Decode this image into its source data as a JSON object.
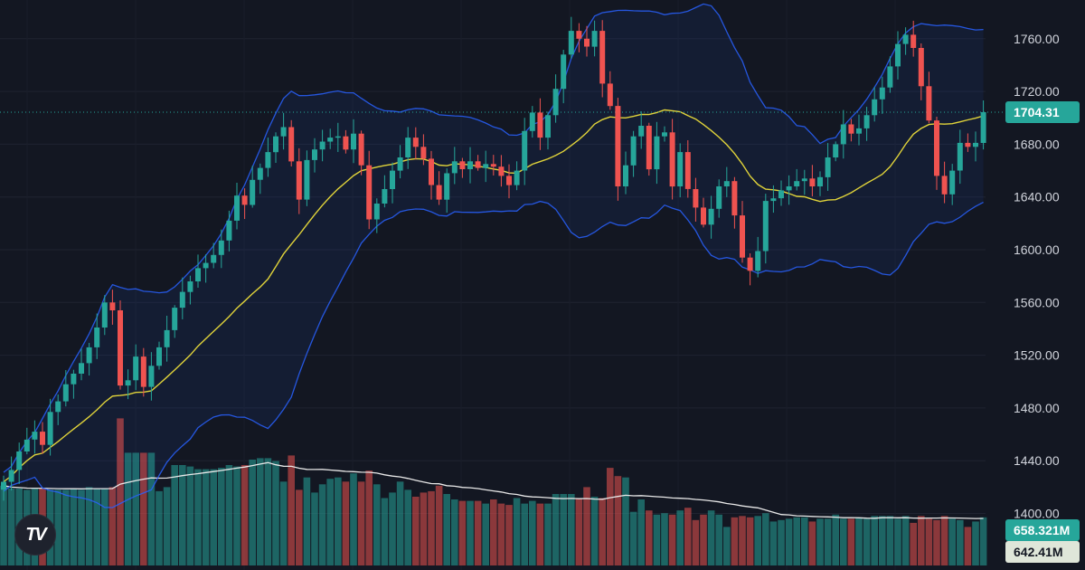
{
  "chart_data": {
    "type": "candlestick",
    "title": "",
    "ylim": [
      1370,
      1795
    ],
    "yticks": [
      1400,
      1440,
      1480,
      1520,
      1560,
      1600,
      1640,
      1680,
      1720,
      1760
    ],
    "ytick_labels": [
      "1400.00",
      "1440.00",
      "1480.00",
      "1520.00",
      "1560.00",
      "1600.00",
      "1640.00",
      "1680.00",
      "1720.00",
      "1760.00"
    ],
    "last_price": 1704.31,
    "last_price_label": "1704.31",
    "volume_label": "658.321M",
    "volume_ma_label": "642.41M",
    "colors": {
      "up": "#26a69a",
      "down": "#ef5350",
      "ma": "#e0d33a",
      "band": "#2962ff",
      "background": "#131722"
    },
    "close": [
      1424,
      1433,
      1447,
      1456,
      1462,
      1452,
      1477,
      1485,
      1498,
      1506,
      1514,
      1526,
      1541,
      1560,
      1554,
      1497,
      1501,
      1519,
      1496,
      1512,
      1526,
      1539,
      1556,
      1568,
      1576,
      1586,
      1590,
      1596,
      1607,
      1622,
      1641,
      1634,
      1653,
      1662,
      1674,
      1686,
      1693,
      1667,
      1638,
      1668,
      1676,
      1682,
      1685,
      1686,
      1676,
      1688,
      1664,
      1623,
      1635,
      1646,
      1660,
      1670,
      1685,
      1678,
      1669,
      1649,
      1638,
      1658,
      1667,
      1661,
      1667,
      1662,
      1665,
      1663,
      1656,
      1649,
      1660,
      1690,
      1704,
      1685,
      1702,
      1722,
      1748,
      1766,
      1760,
      1754,
      1766,
      1726,
      1709,
      1648,
      1664,
      1686,
      1694,
      1661,
      1686,
      1689,
      1648,
      1674,
      1646,
      1632,
      1619,
      1631,
      1648,
      1652,
      1626,
      1594,
      1584,
      1599,
      1637,
      1639,
      1645,
      1648,
      1652,
      1654,
      1648,
      1655,
      1670,
      1680,
      1695,
      1688,
      1692,
      1702,
      1714,
      1723,
      1739,
      1756,
      1763,
      1753,
      1724,
      1698,
      1656,
      1642,
      1660,
      1681,
      1678,
      1681,
      1704.31
    ],
    "volume": [
      58,
      56,
      56,
      55,
      56,
      56,
      55,
      55,
      55,
      56,
      55,
      57,
      56,
      56,
      57,
      107,
      82,
      82,
      82,
      82,
      54,
      57,
      73,
      73,
      72,
      70,
      70,
      70,
      71,
      73,
      72,
      73,
      77,
      78,
      78,
      76,
      61,
      80,
      55,
      64,
      53,
      59,
      63,
      64,
      61,
      67,
      61,
      69,
      59,
      49,
      53,
      61,
      55,
      50,
      53,
      54,
      58,
      52,
      48,
      47,
      47,
      47,
      45,
      48,
      45,
      44,
      49,
      45,
      47,
      45,
      45,
      52,
      52,
      52,
      49,
      57,
      50,
      49,
      71,
      65,
      64,
      39,
      48,
      40,
      37,
      38,
      37,
      40,
      42,
      33,
      37,
      40,
      37,
      28,
      35,
      36,
      35,
      36,
      38,
      32,
      33,
      34,
      35,
      35,
      32,
      34,
      34,
      37,
      34,
      34,
      35,
      34,
      36,
      36,
      36,
      34,
      36,
      31,
      36,
      34,
      33,
      36,
      34,
      33,
      28,
      32,
      35
    ]
  }
}
